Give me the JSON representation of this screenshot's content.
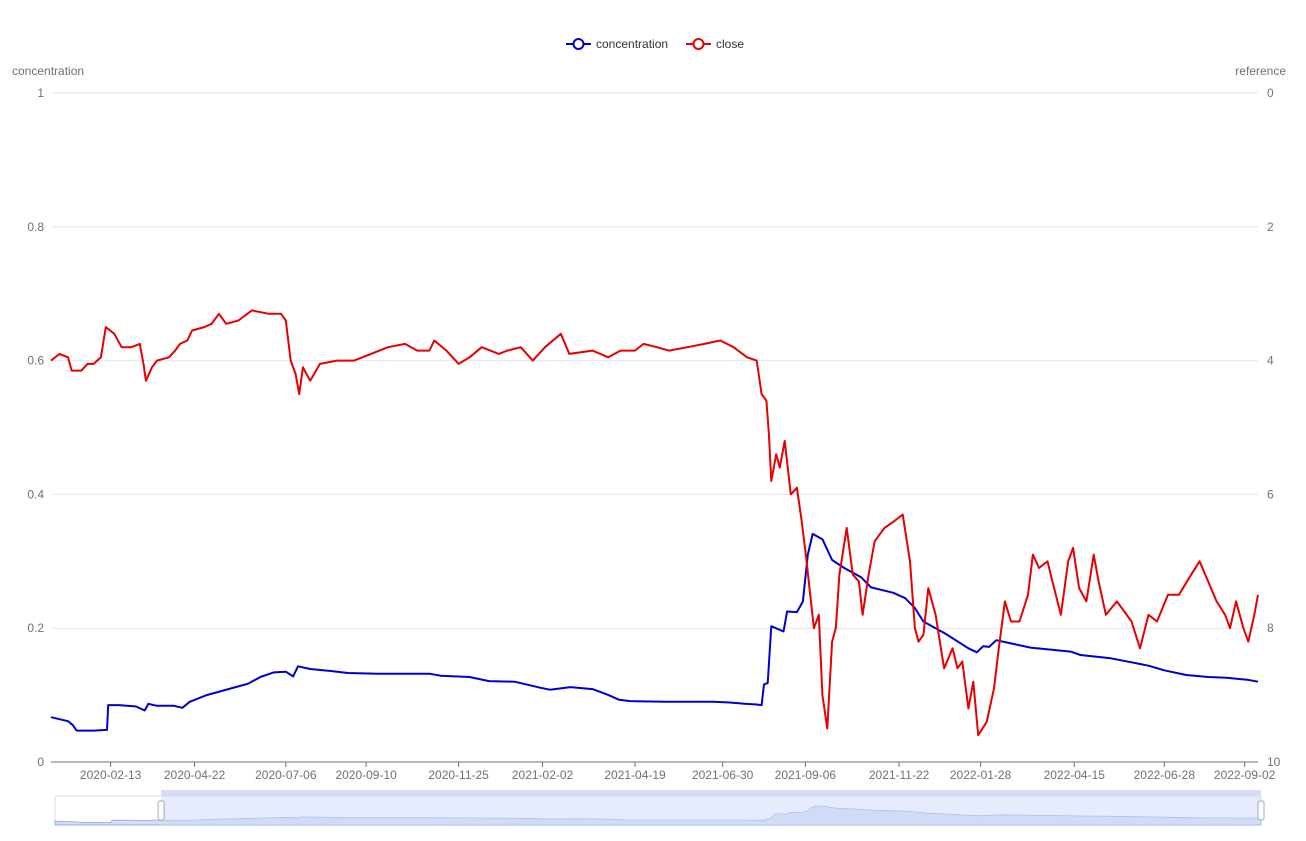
{
  "chart_data": {
    "type": "line",
    "legend": {
      "position": "top-center",
      "items": [
        {
          "name": "concentration",
          "color": "#0000cd"
        },
        {
          "name": "close",
          "color": "#e60000"
        }
      ]
    },
    "y_left": {
      "label": "concentration",
      "range": [
        0,
        1
      ],
      "ticks": [
        "0",
        "0.2",
        "0.4",
        "0.6",
        "0.8",
        "1"
      ]
    },
    "y_right": {
      "label": "reference",
      "range": [
        0,
        10
      ],
      "inverse": true,
      "ticks": [
        "0",
        "2",
        "4",
        "6",
        "8",
        "10"
      ]
    },
    "x_axis": {
      "type": "date",
      "range": [
        "2019-12-26",
        "2022-09-13"
      ],
      "tick_labels": [
        "2020-02-13",
        "2020-04-22",
        "2020-07-06",
        "2020-09-10",
        "2020-11-25",
        "2021-02-02",
        "2021-04-19",
        "2021-06-30",
        "2021-09-06",
        "2021-11-22",
        "2022-01-28",
        "2022-04-15",
        "2022-06-28",
        "2022-09-02"
      ]
    },
    "grid": "horizontal",
    "series": [
      {
        "name": "concentration",
        "axis": "left",
        "color": "#0000cd",
        "points": [
          [
            "2019-12-26",
            0.067
          ],
          [
            "2020-01-02",
            0.064
          ],
          [
            "2020-01-09",
            0.061
          ],
          [
            "2020-01-13",
            0.055
          ],
          [
            "2020-01-16",
            0.047
          ],
          [
            "2020-01-30",
            0.047
          ],
          [
            "2020-02-10",
            0.048
          ],
          [
            "2020-02-11",
            0.085
          ],
          [
            "2020-02-20",
            0.085
          ],
          [
            "2020-03-05",
            0.083
          ],
          [
            "2020-03-12",
            0.077
          ],
          [
            "2020-03-15",
            0.087
          ],
          [
            "2020-03-22",
            0.084
          ],
          [
            "2020-04-05",
            0.084
          ],
          [
            "2020-04-12",
            0.081
          ],
          [
            "2020-04-18",
            0.09
          ],
          [
            "2020-05-02",
            0.1
          ],
          [
            "2020-05-22",
            0.11
          ],
          [
            "2020-06-05",
            0.117
          ],
          [
            "2020-06-15",
            0.127
          ],
          [
            "2020-06-26",
            0.134
          ],
          [
            "2020-07-06",
            0.135
          ],
          [
            "2020-07-12",
            0.128
          ],
          [
            "2020-07-16",
            0.143
          ],
          [
            "2020-07-26",
            0.139
          ],
          [
            "2020-08-12",
            0.136
          ],
          [
            "2020-08-26",
            0.133
          ],
          [
            "2020-09-20",
            0.132
          ],
          [
            "2020-11-01",
            0.132
          ],
          [
            "2020-11-10",
            0.129
          ],
          [
            "2020-12-04",
            0.127
          ],
          [
            "2020-12-20",
            0.121
          ],
          [
            "2021-01-10",
            0.12
          ],
          [
            "2021-01-31",
            0.111
          ],
          [
            "2021-02-08",
            0.108
          ],
          [
            "2021-02-25",
            0.112
          ],
          [
            "2021-03-15",
            0.109
          ],
          [
            "2021-03-27",
            0.101
          ],
          [
            "2021-04-06",
            0.093
          ],
          [
            "2021-04-15",
            0.091
          ],
          [
            "2021-05-15",
            0.09
          ],
          [
            "2021-06-22",
            0.09
          ],
          [
            "2021-07-06",
            0.089
          ],
          [
            "2021-07-18",
            0.087
          ],
          [
            "2021-07-28",
            0.086
          ],
          [
            "2021-08-01",
            0.085
          ],
          [
            "2021-08-03",
            0.116
          ],
          [
            "2021-08-06",
            0.118
          ],
          [
            "2021-08-09",
            0.203
          ],
          [
            "2021-08-19",
            0.195
          ],
          [
            "2021-08-22",
            0.225
          ],
          [
            "2021-08-30",
            0.224
          ],
          [
            "2021-09-04",
            0.24
          ],
          [
            "2021-09-08",
            0.31
          ],
          [
            "2021-09-12",
            0.341
          ],
          [
            "2021-09-20",
            0.333
          ],
          [
            "2021-09-28",
            0.302
          ],
          [
            "2021-10-08",
            0.29
          ],
          [
            "2021-10-22",
            0.276
          ],
          [
            "2021-10-30",
            0.261
          ],
          [
            "2021-11-17",
            0.253
          ],
          [
            "2021-11-27",
            0.245
          ],
          [
            "2021-12-05",
            0.23
          ],
          [
            "2021-12-12",
            0.21
          ],
          [
            "2021-12-30",
            0.192
          ],
          [
            "2022-01-18",
            0.17
          ],
          [
            "2022-01-25",
            0.164
          ],
          [
            "2022-01-30",
            0.173
          ],
          [
            "2022-02-04",
            0.172
          ],
          [
            "2022-02-10",
            0.182
          ],
          [
            "2022-02-20",
            0.178
          ],
          [
            "2022-03-10",
            0.171
          ],
          [
            "2022-04-12",
            0.165
          ],
          [
            "2022-04-20",
            0.16
          ],
          [
            "2022-05-15",
            0.155
          ],
          [
            "2022-06-01",
            0.149
          ],
          [
            "2022-06-15",
            0.144
          ],
          [
            "2022-06-28",
            0.137
          ],
          [
            "2022-07-16",
            0.13
          ],
          [
            "2022-08-03",
            0.127
          ],
          [
            "2022-08-18",
            0.126
          ],
          [
            "2022-09-04",
            0.123
          ],
          [
            "2022-09-13",
            0.12
          ]
        ]
      },
      {
        "name": "close",
        "axis": "right",
        "color": "#e60000",
        "points": [
          [
            "2019-12-26",
            4.0
          ],
          [
            "2020-01-02",
            3.9
          ],
          [
            "2020-01-09",
            3.95
          ],
          [
            "2020-01-12",
            4.15
          ],
          [
            "2020-01-20",
            4.15
          ],
          [
            "2020-01-25",
            4.05
          ],
          [
            "2020-01-30",
            4.05
          ],
          [
            "2020-02-05",
            3.95
          ],
          [
            "2020-02-09",
            3.5
          ],
          [
            "2020-02-16",
            3.6
          ],
          [
            "2020-02-22",
            3.8
          ],
          [
            "2020-03-01",
            3.8
          ],
          [
            "2020-03-08",
            3.75
          ],
          [
            "2020-03-11",
            4.05
          ],
          [
            "2020-03-13",
            4.3
          ],
          [
            "2020-03-18",
            4.1
          ],
          [
            "2020-03-22",
            4.0
          ],
          [
            "2020-04-01",
            3.95
          ],
          [
            "2020-04-06",
            3.85
          ],
          [
            "2020-04-10",
            3.75
          ],
          [
            "2020-04-16",
            3.7
          ],
          [
            "2020-04-20",
            3.55
          ],
          [
            "2020-04-30",
            3.5
          ],
          [
            "2020-05-06",
            3.45
          ],
          [
            "2020-05-12",
            3.3
          ],
          [
            "2020-05-18",
            3.45
          ],
          [
            "2020-05-28",
            3.4
          ],
          [
            "2020-06-08",
            3.25
          ],
          [
            "2020-06-22",
            3.3
          ],
          [
            "2020-07-02",
            3.3
          ],
          [
            "2020-07-06",
            3.4
          ],
          [
            "2020-07-10",
            4.0
          ],
          [
            "2020-07-14",
            4.2
          ],
          [
            "2020-07-17",
            4.5
          ],
          [
            "2020-07-20",
            4.1
          ],
          [
            "2020-07-26",
            4.3
          ],
          [
            "2020-08-03",
            4.05
          ],
          [
            "2020-08-17",
            4.0
          ],
          [
            "2020-08-31",
            4.0
          ],
          [
            "2020-09-14",
            3.9
          ],
          [
            "2020-09-28",
            3.8
          ],
          [
            "2020-10-12",
            3.75
          ],
          [
            "2020-10-22",
            3.85
          ],
          [
            "2020-11-01",
            3.85
          ],
          [
            "2020-11-05",
            3.7
          ],
          [
            "2020-11-15",
            3.85
          ],
          [
            "2020-11-25",
            4.05
          ],
          [
            "2020-12-04",
            3.95
          ],
          [
            "2020-12-14",
            3.8
          ],
          [
            "2020-12-28",
            3.9
          ],
          [
            "2021-01-04",
            3.85
          ],
          [
            "2021-01-15",
            3.8
          ],
          [
            "2021-01-25",
            4.0
          ],
          [
            "2021-02-04",
            3.8
          ],
          [
            "2021-02-17",
            3.6
          ],
          [
            "2021-02-24",
            3.9
          ],
          [
            "2021-03-15",
            3.85
          ],
          [
            "2021-03-28",
            3.95
          ],
          [
            "2021-04-07",
            3.85
          ],
          [
            "2021-04-19",
            3.85
          ],
          [
            "2021-04-26",
            3.75
          ],
          [
            "2021-05-07",
            3.8
          ],
          [
            "2021-05-17",
            3.85
          ],
          [
            "2021-06-01",
            3.8
          ],
          [
            "2021-06-15",
            3.75
          ],
          [
            "2021-06-28",
            3.7
          ],
          [
            "2021-07-09",
            3.8
          ],
          [
            "2021-07-20",
            3.95
          ],
          [
            "2021-07-28",
            4.0
          ],
          [
            "2021-08-01",
            4.5
          ],
          [
            "2021-08-05",
            4.6
          ],
          [
            "2021-08-07",
            5.1
          ],
          [
            "2021-08-09",
            5.8
          ],
          [
            "2021-08-13",
            5.4
          ],
          [
            "2021-08-16",
            5.6
          ],
          [
            "2021-08-20",
            5.2
          ],
          [
            "2021-08-25",
            6.0
          ],
          [
            "2021-08-30",
            5.9
          ],
          [
            "2021-09-03",
            6.4
          ],
          [
            "2021-09-07",
            7.0
          ],
          [
            "2021-09-10",
            7.5
          ],
          [
            "2021-09-13",
            8.0
          ],
          [
            "2021-09-17",
            7.8
          ],
          [
            "2021-09-20",
            9.0
          ],
          [
            "2021-09-24",
            9.5
          ],
          [
            "2021-09-28",
            8.2
          ],
          [
            "2021-10-01",
            8.0
          ],
          [
            "2021-10-04",
            7.2
          ],
          [
            "2021-10-10",
            6.5
          ],
          [
            "2021-10-15",
            7.2
          ],
          [
            "2021-10-20",
            7.3
          ],
          [
            "2021-10-23",
            7.8
          ],
          [
            "2021-10-28",
            7.2
          ],
          [
            "2021-11-02",
            6.7
          ],
          [
            "2021-11-10",
            6.5
          ],
          [
            "2021-11-18",
            6.4
          ],
          [
            "2021-11-25",
            6.3
          ],
          [
            "2021-12-01",
            7.0
          ],
          [
            "2021-12-05",
            8.0
          ],
          [
            "2021-12-08",
            8.2
          ],
          [
            "2021-12-12",
            8.1
          ],
          [
            "2021-12-16",
            7.4
          ],
          [
            "2021-12-22",
            7.8
          ],
          [
            "2021-12-29",
            8.6
          ],
          [
            "2022-01-05",
            8.3
          ],
          [
            "2022-01-09",
            8.6
          ],
          [
            "2022-01-13",
            8.5
          ],
          [
            "2022-01-18",
            9.2
          ],
          [
            "2022-01-22",
            8.8
          ],
          [
            "2022-01-26",
            9.6
          ],
          [
            "2022-02-02",
            9.4
          ],
          [
            "2022-02-08",
            8.9
          ],
          [
            "2022-02-12",
            8.3
          ],
          [
            "2022-02-17",
            7.6
          ],
          [
            "2022-02-22",
            7.9
          ],
          [
            "2022-03-01",
            7.9
          ],
          [
            "2022-03-08",
            7.5
          ],
          [
            "2022-03-12",
            6.9
          ],
          [
            "2022-03-17",
            7.1
          ],
          [
            "2022-03-24",
            7.0
          ],
          [
            "2022-03-28",
            7.3
          ],
          [
            "2022-04-04",
            7.8
          ],
          [
            "2022-04-10",
            7.0
          ],
          [
            "2022-04-14",
            6.8
          ],
          [
            "2022-04-19",
            7.4
          ],
          [
            "2022-04-25",
            7.6
          ],
          [
            "2022-05-01",
            6.9
          ],
          [
            "2022-05-05",
            7.3
          ],
          [
            "2022-05-11",
            7.8
          ],
          [
            "2022-05-20",
            7.6
          ],
          [
            "2022-06-01",
            7.9
          ],
          [
            "2022-06-08",
            8.3
          ],
          [
            "2022-06-15",
            7.8
          ],
          [
            "2022-06-22",
            7.9
          ],
          [
            "2022-07-01",
            7.5
          ],
          [
            "2022-07-10",
            7.5
          ],
          [
            "2022-07-20",
            7.2
          ],
          [
            "2022-07-27",
            7.0
          ],
          [
            "2022-08-03",
            7.3
          ],
          [
            "2022-08-10",
            7.6
          ],
          [
            "2022-08-17",
            7.8
          ],
          [
            "2022-08-21",
            8.0
          ],
          [
            "2022-08-26",
            7.6
          ],
          [
            "2022-09-01",
            8.0
          ],
          [
            "2022-09-05",
            8.2
          ],
          [
            "2022-09-10",
            7.8
          ],
          [
            "2022-09-13",
            7.5
          ]
        ]
      }
    ],
    "data_zoom": {
      "start": 0.088,
      "end": 1.0
    }
  }
}
